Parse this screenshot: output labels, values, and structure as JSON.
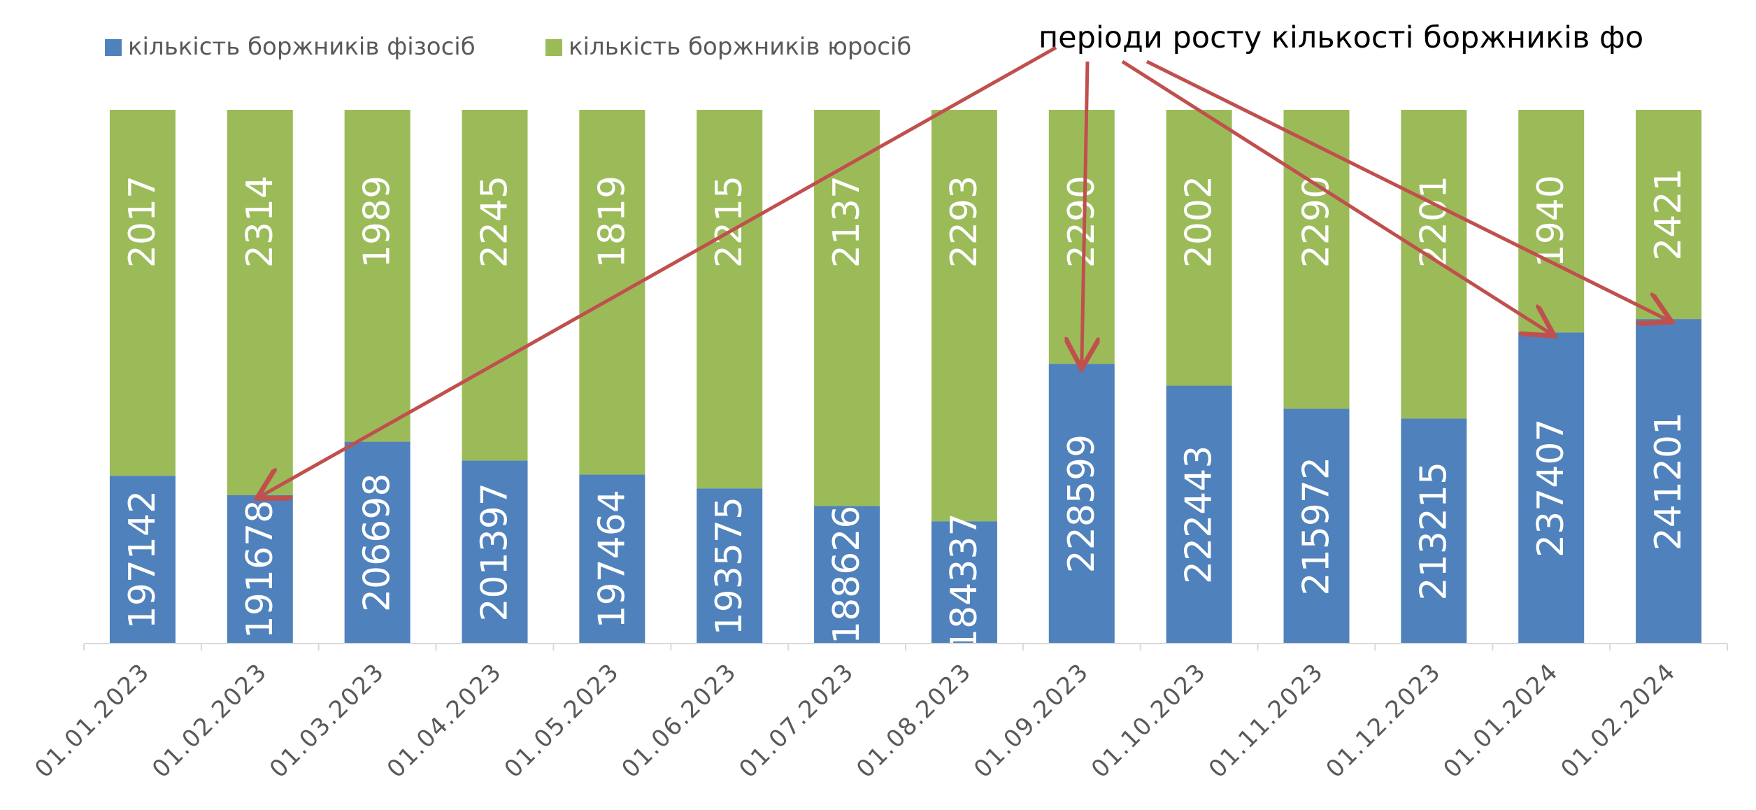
{
  "chart_data": {
    "type": "bar",
    "stacked": true,
    "categories": [
      "01.01.2023",
      "01.02.2023",
      "01.03.2023",
      "01.04.2023",
      "01.05.2023",
      "01.06.2023",
      "01.07.2023",
      "01.08.2023",
      "01.09.2023",
      "01.10.2023",
      "01.11.2023",
      "01.12.2023",
      "01.01.2024",
      "01.02.2024"
    ],
    "series": [
      {
        "name": "кількість боржників фізосіб",
        "color": "#4F81BD",
        "values": [
          197142,
          191678,
          206698,
          201397,
          197464,
          193575,
          188626,
          184337,
          228599,
          222443,
          215972,
          213215,
          237407,
          241201
        ]
      },
      {
        "name": "кількість боржників юросіб",
        "color": "#9BBB59",
        "values": [
          2017,
          2314,
          1989,
          2245,
          1819,
          2215,
          2137,
          2293,
          2290,
          2002,
          2290,
          2201,
          1940,
          2421
        ]
      }
    ],
    "normalized_100_percent": true,
    "legend_position": "top-left",
    "grid": false,
    "annotation": {
      "text": "періоди росту  кількості боржників фо",
      "color": "#C0504D",
      "arrow_targets": [
        "01.02.2023",
        "01.09.2023",
        "01.01.2024",
        "01.02.2024"
      ]
    }
  }
}
